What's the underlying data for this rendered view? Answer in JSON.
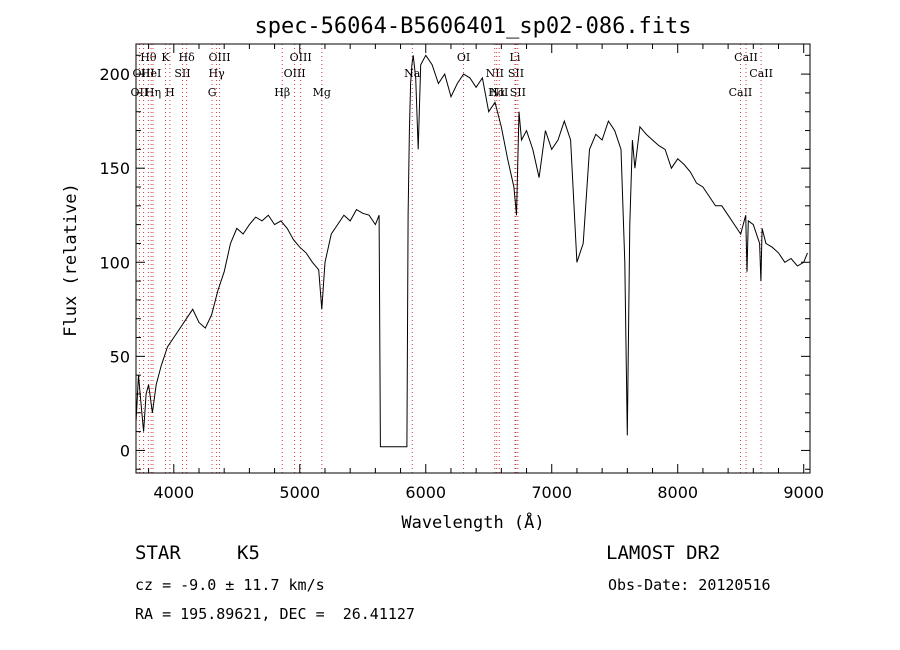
{
  "chart_data": {
    "type": "line",
    "title": "spec-56064-B5606401_sp02-086.fits",
    "xlabel": "Wavelength (Å)",
    "ylabel": "Flux (relative)",
    "xlim": [
      3700,
      9050
    ],
    "ylim": [
      -12,
      216
    ],
    "xticks": [
      4000,
      5000,
      6000,
      7000,
      8000,
      9000
    ],
    "yticks": [
      0,
      50,
      100,
      150,
      200
    ],
    "grid": false,
    "series": [
      {
        "x": [
          3700,
          3720,
          3740,
          3760,
          3780,
          3800,
          3830,
          3860,
          3900,
          3950,
          4000,
          4050,
          4100,
          4150,
          4200,
          4250,
          4300,
          4350,
          4400,
          4450,
          4500,
          4550,
          4600,
          4650,
          4700,
          4750,
          4800,
          4850,
          4900,
          4950,
          5000,
          5050,
          5100,
          5150,
          5175,
          5200,
          5250,
          5300,
          5350,
          5400,
          5450,
          5500,
          5550,
          5600,
          5630,
          5640,
          5650,
          5700,
          5750,
          5800,
          5850,
          5860,
          5870,
          5880,
          5890,
          5900,
          5920,
          5940,
          5960,
          6000,
          6050,
          6100,
          6150,
          6200,
          6250,
          6300,
          6350,
          6400,
          6450,
          6500,
          6550,
          6600,
          6650,
          6700,
          6720,
          6740,
          6760,
          6800,
          6850,
          6900,
          6950,
          7000,
          7050,
          7100,
          7150,
          7200,
          7250,
          7300,
          7350,
          7400,
          7450,
          7500,
          7550,
          7580,
          7600,
          7620,
          7640,
          7660,
          7700,
          7750,
          7800,
          7850,
          7900,
          7950,
          8000,
          8050,
          8100,
          8150,
          8200,
          8250,
          8300,
          8350,
          8400,
          8450,
          8500,
          8540,
          8550,
          8560,
          8600,
          8650,
          8660,
          8670,
          8700,
          8750,
          8800,
          8850,
          8900,
          8950,
          9000,
          9030
        ],
        "y": [
          15,
          40,
          25,
          10,
          30,
          35,
          20,
          35,
          45,
          55,
          60,
          65,
          70,
          75,
          68,
          65,
          72,
          85,
          95,
          110,
          118,
          115,
          120,
          124,
          122,
          125,
          120,
          122,
          118,
          112,
          108,
          105,
          100,
          96,
          75,
          100,
          115,
          120,
          125,
          122,
          128,
          126,
          125,
          120,
          125,
          2,
          2,
          2,
          2,
          2,
          2,
          125,
          170,
          195,
          205,
          210,
          198,
          160,
          205,
          210,
          205,
          195,
          200,
          188,
          195,
          200,
          198,
          193,
          198,
          180,
          185,
          172,
          155,
          140,
          125,
          180,
          165,
          170,
          160,
          145,
          170,
          160,
          165,
          175,
          165,
          100,
          110,
          160,
          168,
          165,
          175,
          170,
          160,
          100,
          8,
          120,
          165,
          150,
          172,
          168,
          165,
          162,
          160,
          150,
          155,
          152,
          148,
          142,
          140,
          135,
          130,
          130,
          125,
          120,
          115,
          125,
          95,
          122,
          120,
          110,
          90,
          118,
          110,
          108,
          105,
          100,
          102,
          98,
          100,
          105
        ]
      }
    ],
    "line_markers": [
      {
        "name": "OII",
        "x": 3727,
        "row": 3
      },
      {
        "name": "OIII",
        "x": 3760,
        "row": 2
      },
      {
        "name": "Hθ",
        "x": 3798,
        "row": 1
      },
      {
        "name": "HeI",
        "x": 3820,
        "row": 2
      },
      {
        "name": "Hη",
        "x": 3835,
        "row": 3
      },
      {
        "name": "K",
        "x": 3934,
        "row": 1
      },
      {
        "name": "SII",
        "x": 4069,
        "row": 2
      },
      {
        "name": "H",
        "x": 3969,
        "row": 3
      },
      {
        "name": "Hδ",
        "x": 4102,
        "row": 1
      },
      {
        "name": "OIII",
        "x": 4363,
        "row": 1
      },
      {
        "name": "Hγ",
        "x": 4340,
        "row": 2
      },
      {
        "name": "G",
        "x": 4304,
        "row": 3
      },
      {
        "name": "Hβ",
        "x": 4861,
        "row": 3
      },
      {
        "name": "OIII",
        "x": 4959,
        "row": 2
      },
      {
        "name": "OIII",
        "x": 5007,
        "row": 1
      },
      {
        "name": "Mg",
        "x": 5175,
        "row": 3
      },
      {
        "name": "Na",
        "x": 5893,
        "row": 2
      },
      {
        "name": "OI",
        "x": 6300,
        "row": 1
      },
      {
        "name": "NII",
        "x": 6548,
        "row": 2
      },
      {
        "name": "Hα",
        "x": 6563,
        "row": 3
      },
      {
        "name": "NII",
        "x": 6583,
        "row": 3
      },
      {
        "name": "Li",
        "x": 6708,
        "row": 1
      },
      {
        "name": "SII",
        "x": 6716,
        "row": 2
      },
      {
        "name": "SII",
        "x": 6731,
        "row": 3
      },
      {
        "name": "CaII",
        "x": 8498,
        "row": 3
      },
      {
        "name": "CaII",
        "x": 8542,
        "row": 1
      },
      {
        "name": "CaII",
        "x": 8662,
        "row": 2
      }
    ]
  },
  "info": {
    "object_class": "STAR",
    "subclass": "K5",
    "survey": "LAMOST DR2",
    "cz": "cz = -9.0 ± 11.7 km/s",
    "obs_date": "Obs-Date: 20120516",
    "coords": "RA = 195.89621, DEC =  26.41127"
  }
}
